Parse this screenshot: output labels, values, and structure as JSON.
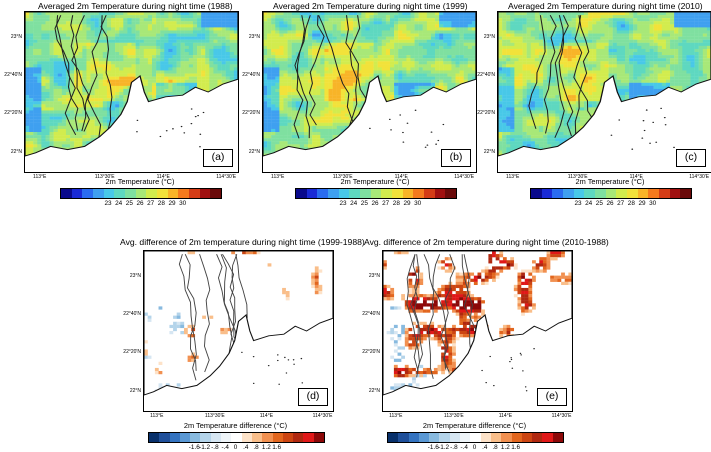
{
  "panels": [
    {
      "title": "Averaged 2m Temperature during night time (1988)",
      "label": "(a)",
      "kind": "temp",
      "seed": 11
    },
    {
      "title": "Averaged 2m Temperature during night time (1999)",
      "label": "(b)",
      "kind": "temp",
      "seed": 23
    },
    {
      "title": "Averaged 2m Temperature during night time (2010)",
      "label": "(c)",
      "kind": "temp",
      "seed": 37
    },
    {
      "title": "Avg. difference of 2m temperature during night time (1999-1988)",
      "label": "(d)",
      "kind": "diff",
      "seed": 41,
      "intensity": 0.45
    },
    {
      "title": "Avg. difference of 2m temperature during night time (2010-1988)",
      "label": "(e)",
      "kind": "diff",
      "seed": 53,
      "intensity": 1.0
    }
  ],
  "lat_ticks": [
    "23°N",
    "22°40'N",
    "22°20'N",
    "22°N"
  ],
  "lon_ticks": [
    "113°E",
    "113°30'E",
    "114°E",
    "114°30'E"
  ],
  "temp_colorbar": {
    "title": "2m Temperature  (°C)",
    "ticks": [
      "23",
      "24",
      "25",
      "26",
      "27",
      "28",
      "29",
      "30"
    ],
    "colors": [
      "#0a0a8c",
      "#1a2ad6",
      "#2a6cf0",
      "#3fa0f0",
      "#48c8e8",
      "#5ed8c0",
      "#7fe0a0",
      "#a8e878",
      "#d2ec4e",
      "#f2e23a",
      "#f8b428",
      "#f47a1e",
      "#d43c16",
      "#a01010",
      "#6a0a0a"
    ]
  },
  "diff_colorbar": {
    "title": "2m Temperature difference  (°C)",
    "ticks": [
      "-1.6",
      "-1.2",
      "-.8",
      "-.4",
      "0",
      ".4",
      ".8",
      "1.2",
      "1.6"
    ],
    "colors": [
      "#08306b",
      "#1f4f9a",
      "#3473c0",
      "#5a98d4",
      "#88badf",
      "#b4d4ea",
      "#d6e6f2",
      "#eef4f8",
      "#ffffff",
      "#fde2c8",
      "#f9be8a",
      "#f19050",
      "#e2661e",
      "#cc4512",
      "#b02810",
      "#e01818",
      "#8c0808"
    ]
  }
}
